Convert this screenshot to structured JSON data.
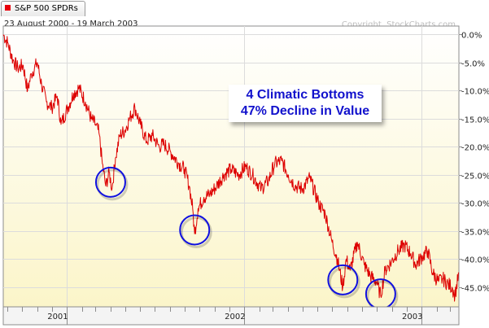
{
  "legend": {
    "label": "S&P 500 SPDRs",
    "swatch_color": "#e8000b"
  },
  "date_range": "23 August 2000 - 19 March 2003",
  "copyright": "Copyright, StockCharts.com",
  "annotation": {
    "line1": "4 Climatic Bottoms",
    "line2": "47% Decline in Value"
  },
  "chart_data": {
    "type": "line",
    "title": "",
    "xlabel": "",
    "ylabel": "",
    "ylim": [
      -48.5,
      1.5
    ],
    "y_ticks": [
      0,
      -5,
      -10,
      -15,
      -20,
      -25,
      -30,
      -35,
      -40,
      -45
    ],
    "y_tick_labels": [
      "0.0%",
      "-5.0%",
      "-10.0%",
      "-15.0%",
      "-20.0%",
      "-25.0%",
      "-30.0%",
      "-35.0%",
      "-40.0%",
      "-45.0%"
    ],
    "x_range": [
      "2000-08-23",
      "2003-03-19"
    ],
    "x_tick_labels": [
      {
        "label": "2001",
        "date": "2001-01-01"
      },
      {
        "label": "2002",
        "date": "2002-01-01"
      },
      {
        "label": "2003",
        "date": "2003-01-01"
      }
    ],
    "grid": true,
    "line_color": "#dd0000",
    "series": [
      {
        "name": "S&P 500 SPDRs",
        "points": [
          [
            "2000-08-23",
            0.0
          ],
          [
            "2000-09-01",
            -1.5
          ],
          [
            "2000-09-12",
            -4.5
          ],
          [
            "2000-09-22",
            -6.0
          ],
          [
            "2000-10-03",
            -5.5
          ],
          [
            "2000-10-12",
            -10.0
          ],
          [
            "2000-10-20",
            -7.0
          ],
          [
            "2000-11-01",
            -5.0
          ],
          [
            "2000-11-10",
            -9.0
          ],
          [
            "2000-11-20",
            -12.0
          ],
          [
            "2000-12-01",
            -13.0
          ],
          [
            "2000-12-12",
            -11.0
          ],
          [
            "2000-12-20",
            -16.0
          ],
          [
            "2001-01-03",
            -13.0
          ],
          [
            "2001-01-15",
            -10.5
          ],
          [
            "2001-01-26",
            -9.5
          ],
          [
            "2001-02-08",
            -12.0
          ],
          [
            "2001-02-20",
            -15.0
          ],
          [
            "2001-03-01",
            -16.0
          ],
          [
            "2001-03-08",
            -17.5
          ],
          [
            "2001-03-15",
            -23.0
          ],
          [
            "2001-03-22",
            -27.0
          ],
          [
            "2001-03-29",
            -24.5
          ],
          [
            "2001-04-04",
            -27.5
          ],
          [
            "2001-04-11",
            -22.0
          ],
          [
            "2001-04-20",
            -18.0
          ],
          [
            "2001-05-01",
            -17.0
          ],
          [
            "2001-05-10",
            -15.0
          ],
          [
            "2001-05-21",
            -13.0
          ],
          [
            "2001-06-01",
            -16.0
          ],
          [
            "2001-06-14",
            -19.0
          ],
          [
            "2001-06-26",
            -18.0
          ],
          [
            "2001-07-10",
            -20.0
          ],
          [
            "2001-07-20",
            -19.5
          ],
          [
            "2001-08-03",
            -21.0
          ],
          [
            "2001-08-20",
            -23.0
          ],
          [
            "2001-08-31",
            -24.0
          ],
          [
            "2001-09-10",
            -27.0
          ],
          [
            "2001-09-17",
            -31.0
          ],
          [
            "2001-09-21",
            -35.5
          ],
          [
            "2001-09-28",
            -31.0
          ],
          [
            "2001-10-10",
            -29.0
          ],
          [
            "2001-10-22",
            -28.5
          ],
          [
            "2001-11-05",
            -27.0
          ],
          [
            "2001-11-20",
            -25.0
          ],
          [
            "2001-12-05",
            -24.0
          ],
          [
            "2001-12-20",
            -25.0
          ],
          [
            "2002-01-04",
            -23.5
          ],
          [
            "2002-01-18",
            -25.0
          ],
          [
            "2002-02-05",
            -27.5
          ],
          [
            "2002-02-20",
            -26.0
          ],
          [
            "2002-03-05",
            -23.0
          ],
          [
            "2002-03-19",
            -22.5
          ],
          [
            "2002-04-02",
            -25.0
          ],
          [
            "2002-04-16",
            -27.0
          ],
          [
            "2002-05-01",
            -27.5
          ],
          [
            "2002-05-16",
            -25.5
          ],
          [
            "2002-06-03",
            -30.0
          ],
          [
            "2002-06-17",
            -32.0
          ],
          [
            "2002-07-01",
            -37.0
          ],
          [
            "2002-07-12",
            -40.0
          ],
          [
            "2002-07-23",
            -45.0
          ],
          [
            "2002-07-30",
            -40.0
          ],
          [
            "2002-08-07",
            -42.0
          ],
          [
            "2002-08-22",
            -37.0
          ],
          [
            "2002-09-05",
            -41.0
          ],
          [
            "2002-09-18",
            -43.0
          ],
          [
            "2002-09-30",
            -44.0
          ],
          [
            "2002-10-09",
            -46.5
          ],
          [
            "2002-10-18",
            -42.0
          ],
          [
            "2002-10-31",
            -40.5
          ],
          [
            "2002-11-14",
            -38.5
          ],
          [
            "2002-11-27",
            -37.5
          ],
          [
            "2002-12-10",
            -39.0
          ],
          [
            "2002-12-20",
            -41.0
          ],
          [
            "2003-01-03",
            -39.5
          ],
          [
            "2003-01-14",
            -38.5
          ],
          [
            "2003-01-24",
            -42.5
          ],
          [
            "2003-02-05",
            -44.0
          ],
          [
            "2003-02-14",
            -43.5
          ],
          [
            "2003-02-25",
            -44.5
          ],
          [
            "2003-03-05",
            -45.0
          ],
          [
            "2003-03-11",
            -46.5
          ],
          [
            "2003-03-19",
            -42.5
          ]
        ]
      }
    ],
    "highlighted_bottoms": [
      {
        "date": "2001-04-01",
        "value": -26.3
      },
      {
        "date": "2001-09-21",
        "value": -34.8
      },
      {
        "date": "2002-07-23",
        "value": -43.7
      },
      {
        "date": "2002-10-09",
        "value": -46.2
      }
    ]
  }
}
